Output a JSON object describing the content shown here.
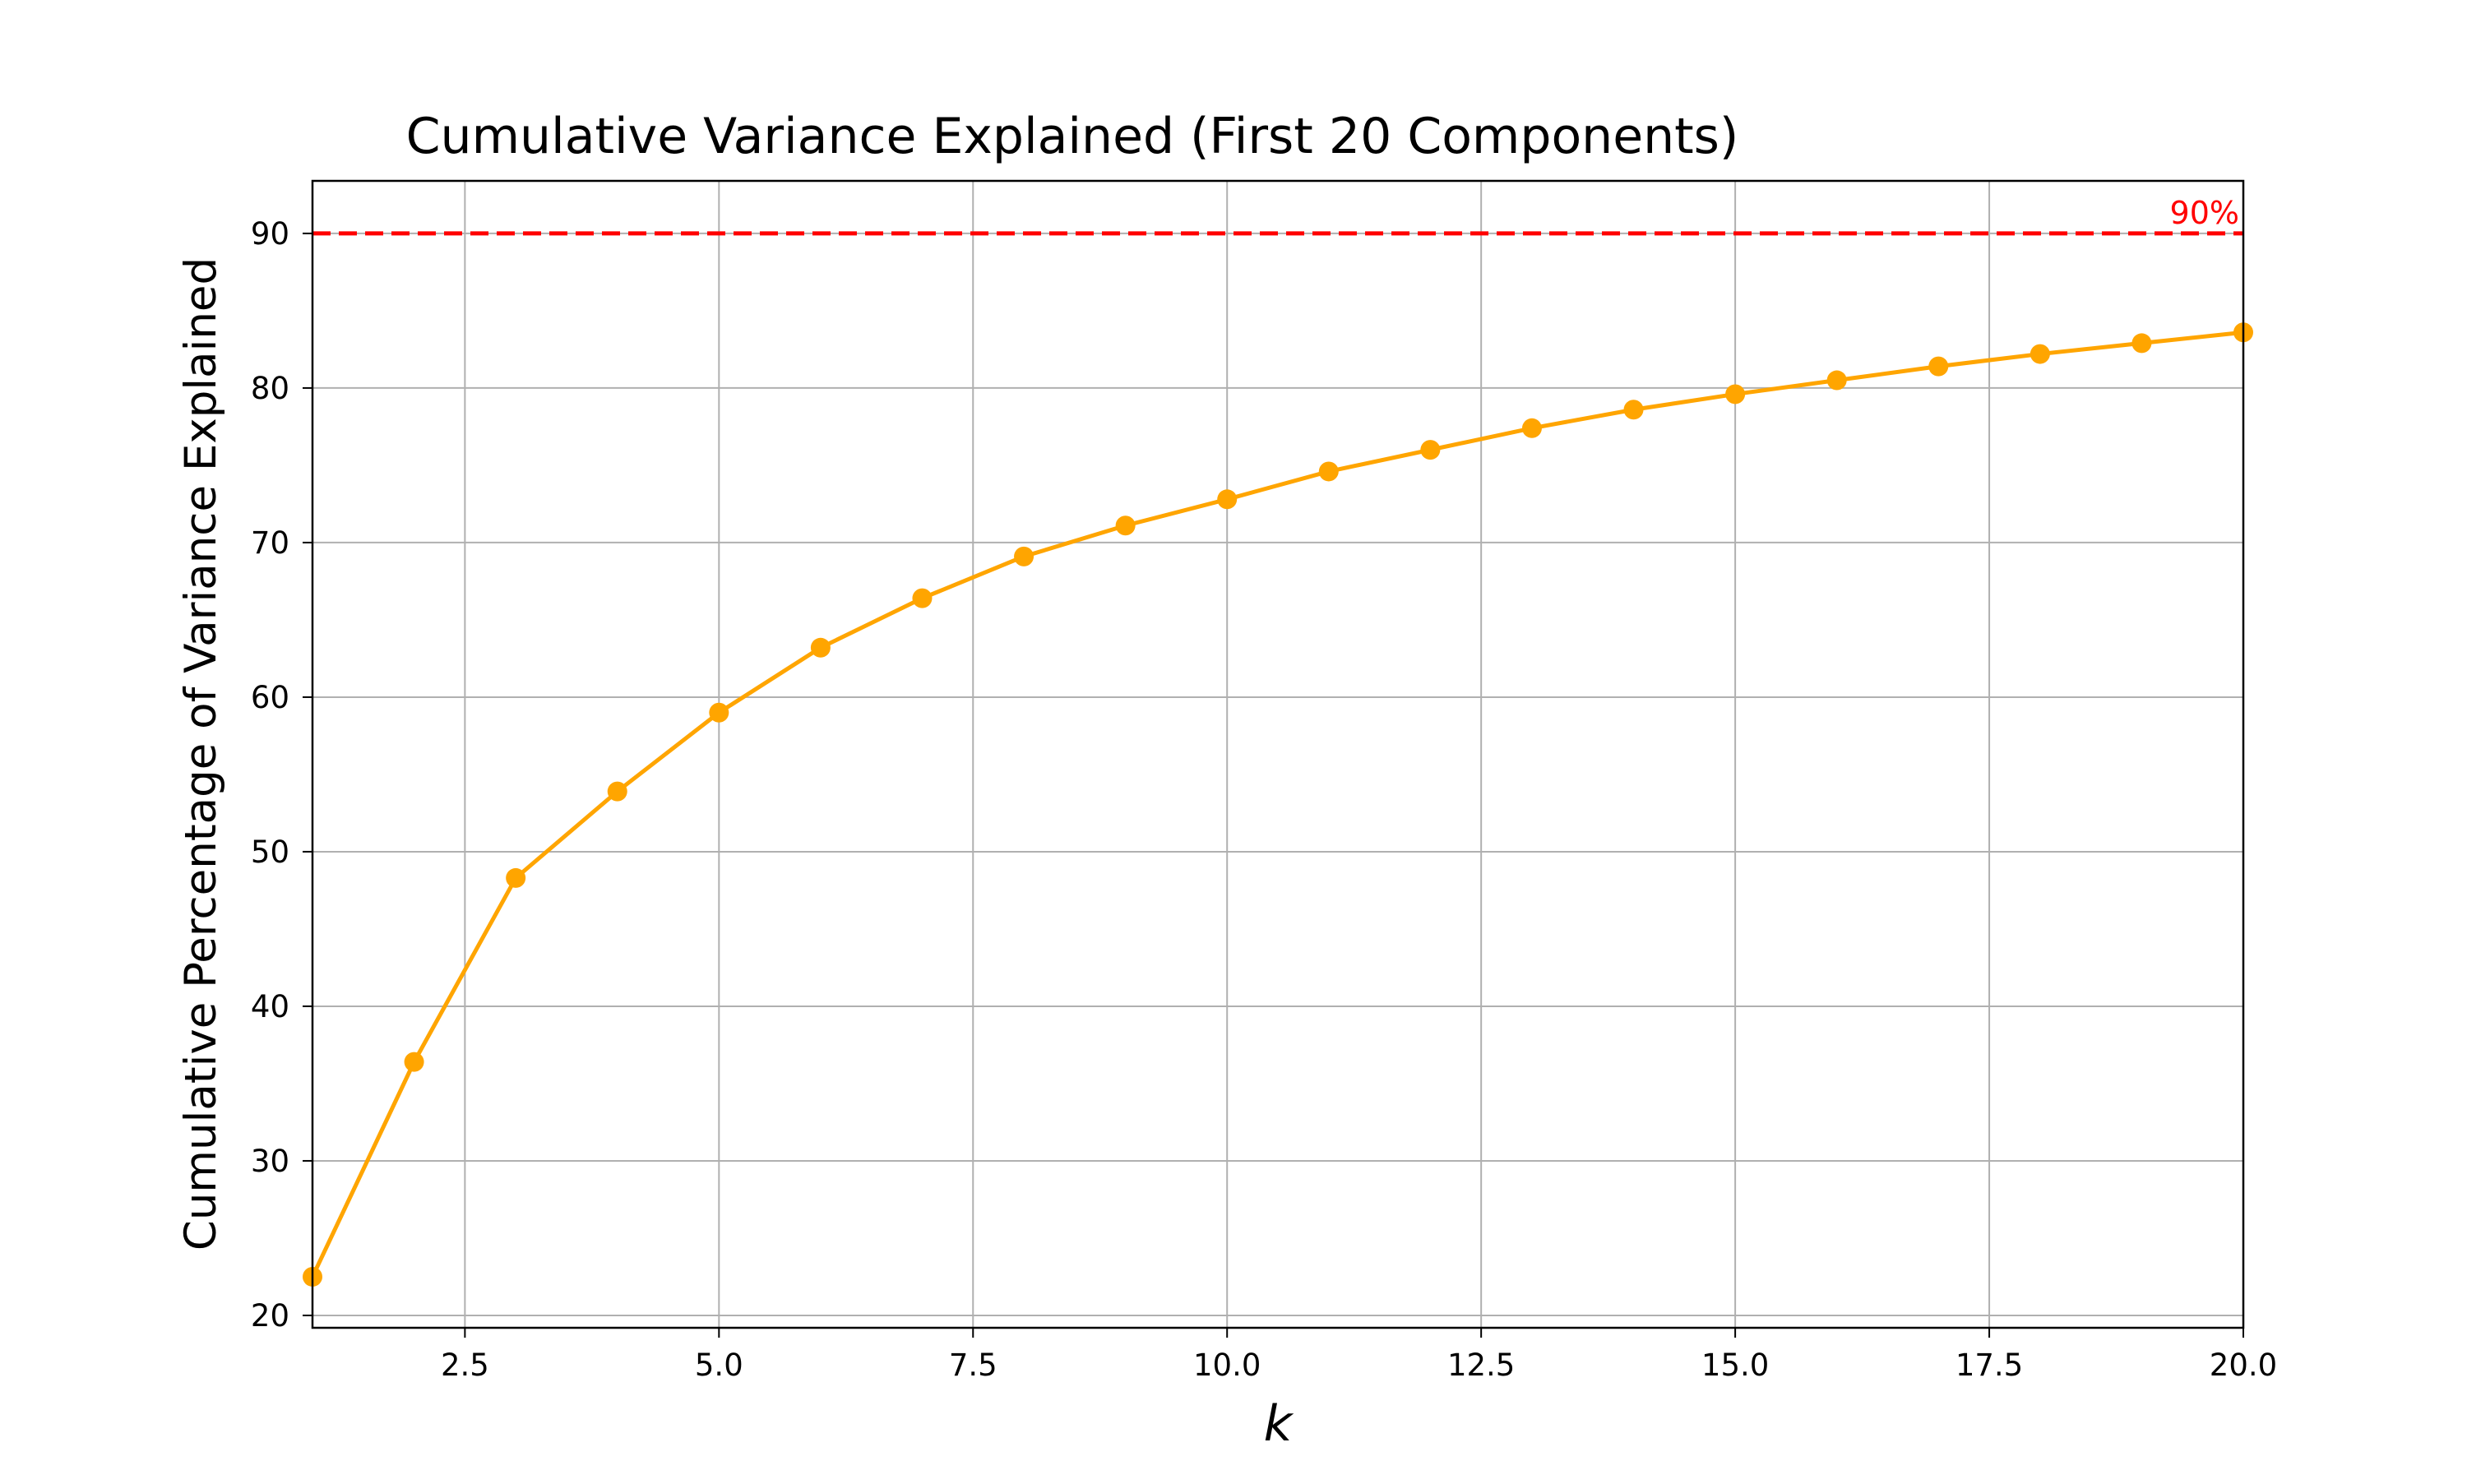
{
  "chart_data": {
    "type": "line",
    "title": "Cumulative Variance Explained (First 20 Components)",
    "xlabel": "k",
    "ylabel": "Cumulative Percentage of Variance Explained",
    "xlim": [
      1,
      20
    ],
    "ylim": [
      19.2,
      93.4
    ],
    "xticks": [
      2.5,
      5.0,
      7.5,
      10.0,
      12.5,
      15.0,
      17.5,
      20.0
    ],
    "xtick_labels": [
      "2.5",
      "5.0",
      "7.5",
      "10.0",
      "12.5",
      "15.0",
      "17.5",
      "20.0"
    ],
    "yticks": [
      20,
      30,
      40,
      50,
      60,
      70,
      80,
      90
    ],
    "ytick_labels": [
      "20",
      "30",
      "40",
      "50",
      "60",
      "70",
      "80",
      "90"
    ],
    "grid": true,
    "series": [
      {
        "color": "#ffa500",
        "marker": "circle",
        "x": [
          1,
          2,
          3,
          4,
          5,
          6,
          7,
          8,
          9,
          10,
          11,
          12,
          13,
          14,
          15,
          16,
          17,
          18,
          19,
          20
        ],
        "y": [
          22.5,
          36.4,
          48.3,
          53.9,
          59.0,
          63.2,
          66.4,
          69.1,
          71.1,
          72.8,
          74.6,
          76.0,
          77.4,
          78.6,
          79.6,
          80.5,
          81.4,
          82.2,
          82.9,
          83.6
        ]
      }
    ],
    "reference_lines": [
      {
        "orientation": "horizontal",
        "y": 90,
        "style": "dashed",
        "color": "#ff0000",
        "label": "90%"
      }
    ]
  }
}
